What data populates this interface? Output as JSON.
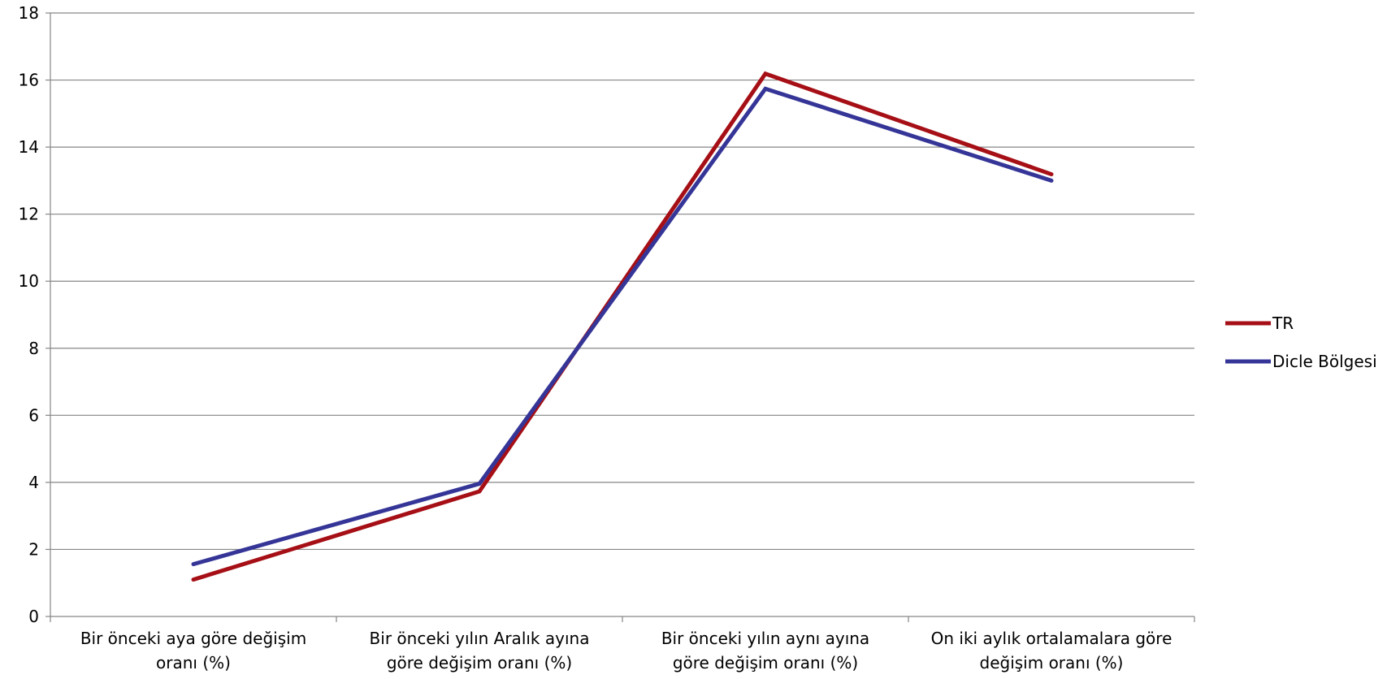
{
  "chart_data": {
    "type": "line",
    "categories": [
      [
        "Bir önceki aya göre değişim",
        "oranı (%)"
      ],
      [
        "Bir önceki yılın Aralık ayına",
        "göre değişim oranı (%)"
      ],
      [
        "Bir önceki yılın aynı ayına",
        "göre değişim oranı (%)"
      ],
      [
        "On iki aylık ortalamalara göre",
        "değişim oranı (%)"
      ]
    ],
    "series": [
      {
        "name": "TR",
        "values": [
          1.1,
          3.73,
          16.19,
          13.19
        ],
        "color": "#A50F15"
      },
      {
        "name": "Dicle Bölgesi",
        "values": [
          1.56,
          3.96,
          15.74,
          13.0
        ],
        "color": "#353598"
      }
    ],
    "ylim": [
      0,
      18
    ],
    "yticks": [
      "0",
      "2",
      "4",
      "6",
      "8",
      "10",
      "12",
      "14",
      "16",
      "18"
    ],
    "grid": true,
    "legend": "right"
  }
}
